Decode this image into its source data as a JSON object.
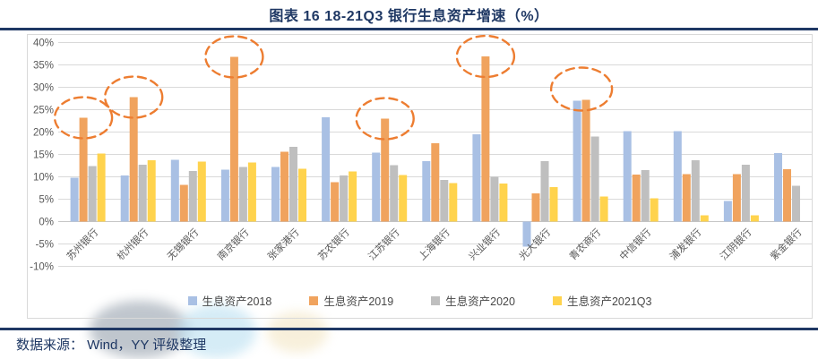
{
  "page": {
    "title": "图表 16 18-21Q3 银行生息资产增速（%）",
    "source": "数据来源： Wind，YY 评级整理"
  },
  "colors": {
    "accent_navy": "#1F3864",
    "grid_line": "#D9D9D9",
    "zero_line": "#C6C6C6",
    "frame_border": "#D9D9D9",
    "axis_text": "#595959",
    "annotation_orange": "#ED7D31",
    "bar_2018": "#A9C0E4",
    "bar_2019": "#F0A35E",
    "bar_2020": "#BFBFBF",
    "bar_2021q3": "#FFD34D"
  },
  "chart_data": {
    "type": "bar",
    "title": "图表 16 18-21Q3 银行生息资产增速（%）",
    "categories": [
      "苏州银行",
      "杭州银行",
      "无锡银行",
      "南京银行",
      "张家港行",
      "苏农银行",
      "江苏银行",
      "上海银行",
      "兴业银行",
      "光大银行",
      "青农商行",
      "中信银行",
      "浦发银行",
      "江阴银行",
      "紫金银行"
    ],
    "series": [
      {
        "name": "生息资产2018",
        "color_key": "bar_2018",
        "values": [
          9.8,
          10.3,
          13.8,
          11.6,
          12.2,
          23.3,
          15.4,
          13.5,
          19.5,
          -5.6,
          27.0,
          20.2,
          20.2,
          4.6,
          15.3
        ]
      },
      {
        "name": "生息资产2019",
        "color_key": "bar_2019",
        "values": [
          23.2,
          27.8,
          8.2,
          36.8,
          15.6,
          8.8,
          23.0,
          17.5,
          36.9,
          6.3,
          27.2,
          10.5,
          10.6,
          10.6,
          11.7
        ]
      },
      {
        "name": "生息资产2020",
        "color_key": "bar_2020",
        "values": [
          12.4,
          12.7,
          11.3,
          12.2,
          16.7,
          10.3,
          12.6,
          9.3,
          10.0,
          13.5,
          19.0,
          11.5,
          13.7,
          12.7,
          8.0
        ]
      },
      {
        "name": "生息资产2021Q3",
        "color_key": "bar_2021q3",
        "values": [
          15.2,
          13.7,
          13.4,
          13.2,
          11.8,
          11.2,
          10.4,
          8.6,
          8.5,
          7.7,
          5.6,
          5.2,
          1.4,
          1.4,
          null
        ]
      }
    ],
    "ylim": [
      -10,
      40
    ],
    "ytick_step": 5,
    "ytick_labels": [
      "40%",
      "35%",
      "30%",
      "25%",
      "20%",
      "15%",
      "10%",
      "5%",
      "0%",
      "-5%",
      "-10%"
    ],
    "grid": "on",
    "legend_position": "bottom",
    "annotations": [
      {
        "category": "苏州银行",
        "series": [
          "生息资产2019"
        ]
      },
      {
        "category": "杭州银行",
        "series": [
          "生息资产2019"
        ]
      },
      {
        "category": "南京银行",
        "series": [
          "生息资产2019"
        ]
      },
      {
        "category": "江苏银行",
        "series": [
          "生息资产2019"
        ]
      },
      {
        "category": "兴业银行",
        "series": [
          "生息资产2019"
        ]
      },
      {
        "category": "青农商行",
        "series": [
          "生息资产2018",
          "生息资产2019"
        ]
      }
    ]
  }
}
